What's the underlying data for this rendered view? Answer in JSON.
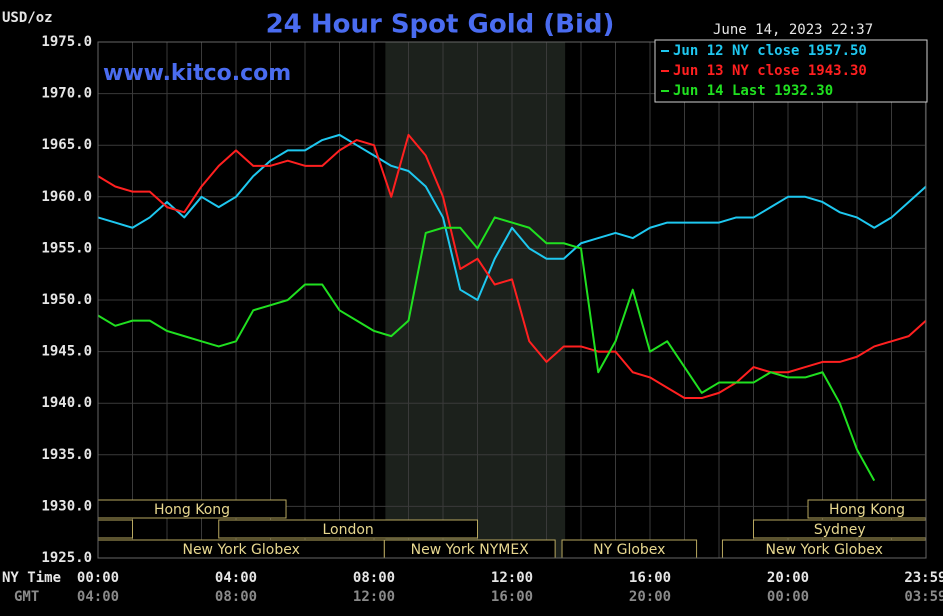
{
  "chart_data": {
    "type": "line",
    "title": "24 Hour Spot Gold (Bid)",
    "website": "www.kitco.com",
    "timestamp": "June 14, 2023 22:37",
    "y_unit": "USD/oz",
    "x_label": "NY Time",
    "x2_label": "GMT",
    "xlim": [
      0,
      24
    ],
    "ylim": [
      1925,
      1975
    ],
    "yticks": [
      {
        "value": 1925,
        "label": "1925.0"
      },
      {
        "value": 1930,
        "label": "1930.0"
      },
      {
        "value": 1935,
        "label": "1935.0"
      },
      {
        "value": 1940,
        "label": "1940.0"
      },
      {
        "value": 1945,
        "label": "1945.0"
      },
      {
        "value": 1950,
        "label": "1950.0"
      },
      {
        "value": 1955,
        "label": "1955.0"
      },
      {
        "value": 1960,
        "label": "1960.0"
      },
      {
        "value": 1965,
        "label": "1965.0"
      },
      {
        "value": 1970,
        "label": "1970.0"
      },
      {
        "value": 1975,
        "label": "1975.0"
      }
    ],
    "xticks": [
      {
        "value": 0,
        "label": "00:00"
      },
      {
        "value": 4,
        "label": "04:00"
      },
      {
        "value": 8,
        "label": "08:00"
      },
      {
        "value": 12,
        "label": "12:00"
      },
      {
        "value": 16,
        "label": "16:00"
      },
      {
        "value": 20,
        "label": "20:00"
      },
      {
        "value": 23.983,
        "label": "23:59"
      }
    ],
    "x2tick_labels": [
      "04:00",
      "08:00",
      "12:00",
      "16:00",
      "20:00",
      "00:00",
      "03:59"
    ],
    "x_minor_ticks": [
      1,
      2,
      3,
      5,
      6,
      7,
      9,
      10,
      11,
      13,
      14,
      15,
      17,
      18,
      19,
      21,
      22,
      23
    ],
    "grid": true,
    "highlight_range": [
      8.33,
      13.54
    ],
    "sessions": [
      {
        "name": "Hong Kong",
        "row": 0,
        "start": 0,
        "end": 5.45
      },
      {
        "name": "Hong Kong",
        "row": 0,
        "start": 20.58,
        "end": 24
      },
      {
        "name": null,
        "row": 1,
        "start": 0,
        "end": 1
      },
      {
        "name": "London",
        "row": 1,
        "start": 3.5,
        "end": 11
      },
      {
        "name": "Sydney",
        "row": 1,
        "start": 19,
        "end": 24
      },
      {
        "name": "New York Globex",
        "row": 2,
        "start": 0,
        "end": 8.3
      },
      {
        "name": "New York NYMEX",
        "row": 2,
        "start": 8.3,
        "end": 13.25
      },
      {
        "name": "NY Globex",
        "row": 2,
        "start": 13.45,
        "end": 17.35
      },
      {
        "name": "New York Globex",
        "row": 2,
        "start": 18.1,
        "end": 24
      }
    ],
    "x": [
      0,
      0.5,
      1,
      1.5,
      2,
      2.5,
      3,
      3.5,
      4,
      4.5,
      5,
      5.5,
      6,
      6.5,
      7,
      7.5,
      8,
      8.5,
      9,
      9.5,
      10,
      10.5,
      11,
      11.5,
      12,
      12.5,
      13,
      13.5,
      14,
      14.5,
      15,
      15.5,
      16,
      16.5,
      17,
      17.5,
      18,
      18.5,
      19,
      19.5,
      20,
      20.5,
      21,
      21.5,
      22,
      22.5,
      23,
      23.5,
      24
    ],
    "series": [
      {
        "name": "Jun 12 NY close 1957.50",
        "color": "#1ec8f0",
        "values": [
          1958,
          1957.5,
          1957,
          1958,
          1959.5,
          1958,
          1960,
          1959,
          1960,
          1962,
          1963.5,
          1964.5,
          1964.5,
          1965.5,
          1966,
          1965,
          1964,
          1963,
          1962.5,
          1961,
          1958,
          1951,
          1950,
          1954,
          1957,
          1955,
          1954,
          1954,
          1955.5,
          1956,
          1956.5,
          1956,
          1957,
          1957.5,
          1957.5,
          1957.5,
          1957.5,
          1958,
          1958,
          1959,
          1960,
          1960,
          1959.5,
          1958.5,
          1958,
          1957,
          1958,
          1959.5,
          1961
        ]
      },
      {
        "name": "Jun 13 NY close 1943.30",
        "color": "#ff2020",
        "values": [
          1962,
          1961,
          1960.5,
          1960.5,
          1959,
          1958.5,
          1961,
          1963,
          1964.5,
          1963,
          1963,
          1963.5,
          1963,
          1963,
          1964.5,
          1965.5,
          1965,
          1960,
          1966,
          1964,
          1960,
          1953,
          1954,
          1951.5,
          1952,
          1946,
          1944,
          1945.5,
          1945.5,
          1945,
          1945,
          1943,
          1942.5,
          1941.5,
          1940.5,
          1940.5,
          1941,
          1942,
          1943.5,
          1943,
          1943,
          1943.5,
          1944,
          1944,
          1944.5,
          1945.5,
          1946,
          1946.5,
          1948
        ]
      },
      {
        "name": "Jun 14 Last 1932.30",
        "color": "#20e020",
        "values": [
          1948.5,
          1947.5,
          1948,
          1948,
          1947,
          1946.5,
          1946,
          1945.5,
          1946,
          1949,
          1949.5,
          1950,
          1951.5,
          1951.5,
          1949,
          1948,
          1947,
          1946.5,
          1948,
          1956.5,
          1957,
          1957,
          1955,
          1958,
          1957.5,
          1957,
          1955.5,
          1955.5,
          1955,
          1943,
          1946,
          1951,
          1945,
          1946,
          1943.5,
          1941,
          1942,
          1942,
          1942,
          1943,
          1942.5,
          1942.5,
          1943,
          1940,
          1935.5,
          1932.5,
          null,
          null,
          null
        ]
      }
    ]
  }
}
